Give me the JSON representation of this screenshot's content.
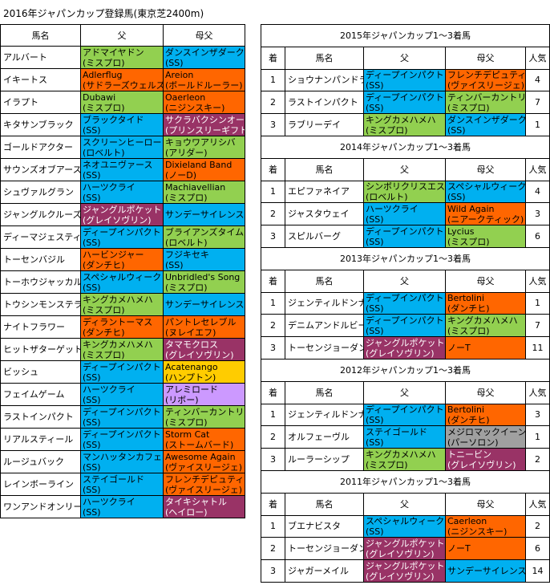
{
  "title": "2016年ジャパンカップ登録馬(東京芝2400m)",
  "entries": {
    "headers": [
      "馬名",
      "父",
      "母父"
    ],
    "rows": [
      {
        "horse": "アルバート",
        "sire": {
          "name": "アドマイヤドン",
          "line": "(ミスプロ)",
          "color": "#92d050"
        },
        "damsire": {
          "name": "ダンスインザダーク",
          "line": "(SS)",
          "color": "#00b0f0"
        }
      },
      {
        "horse": "イキートス",
        "sire": {
          "name": "Adlerflug",
          "line": "(サドラーズウェルズ)",
          "color": "#ff6600"
        },
        "damsire": {
          "name": "Areion",
          "line": "(ボールドルーラー)",
          "color": "#ff6600"
        }
      },
      {
        "horse": "イラプト",
        "sire": {
          "name": "Dubawi",
          "line": "(ミスプロ)",
          "color": "#92d050"
        },
        "damsire": {
          "name": "Oaerleon",
          "line": "(ニジンスキー)",
          "color": "#ff6600"
        }
      },
      {
        "horse": "キタサンブラック",
        "sire": {
          "name": "ブラックタイド",
          "line": "(SS)",
          "color": "#00b0f0"
        },
        "damsire": {
          "name": "サクラバクシンオー",
          "line": "(プリンスリーギフト)",
          "color": "#993366"
        }
      },
      {
        "horse": "ゴールドアクター",
        "sire": {
          "name": "スクリーンヒーロー",
          "line": "(ロベルト)",
          "color": "#00b0f0"
        },
        "damsire": {
          "name": "キョウワアリシバ",
          "line": "(アリダー)",
          "color": "#92d050"
        }
      },
      {
        "horse": "サウンズオブアース",
        "sire": {
          "name": "ネオユニヴァース",
          "line": "(SS)",
          "color": "#00b0f0"
        },
        "damsire": {
          "name": "Dixieland Band",
          "line": "(ノーD)",
          "color": "#ff6600"
        }
      },
      {
        "horse": "シュヴァルグラン",
        "sire": {
          "name": "ハーツクライ",
          "line": "(SS)",
          "color": "#00b0f0"
        },
        "damsire": {
          "name": "Machiavellian",
          "line": "(ミスプロ)",
          "color": "#92d050"
        }
      },
      {
        "horse": "ジャングルクルーズ",
        "sire": {
          "name": "ジャングルポケット",
          "line": "(グレイソヴリン)",
          "color": "#993366"
        },
        "damsire": {
          "name": "サンデーサイレンス",
          "color": "#00b0f0"
        }
      },
      {
        "horse": "ディーマジェスティ",
        "sire": {
          "name": "ディープインパクト",
          "line": "(SS)",
          "color": "#00b0f0"
        },
        "damsire": {
          "name": "ブライアンズタイム",
          "line": "(ロベルト)",
          "color": "#92d050"
        }
      },
      {
        "horse": "トーセンバジル",
        "sire": {
          "name": "ハービンジャー",
          "line": "(ダンチヒ)",
          "color": "#ff6600"
        },
        "damsire": {
          "name": "フジキセキ",
          "line": "(SS)",
          "color": "#00b0f0"
        }
      },
      {
        "horse": "トーホウジャッカル",
        "sire": {
          "name": "スペシャルウィーク",
          "line": "(SS)",
          "color": "#00b0f0"
        },
        "damsire": {
          "name": "Unbridled's Song",
          "line": "(ミスプロ)",
          "color": "#92d050"
        }
      },
      {
        "horse": "トウシンモンステラ",
        "sire": {
          "name": "キングカメハメハ",
          "line": "(ミスプロ)",
          "color": "#92d050"
        },
        "damsire": {
          "name": "サンデーサイレンス",
          "color": "#00b0f0"
        }
      },
      {
        "horse": "ナイトフラワー",
        "sire": {
          "name": "ディラントーマス",
          "line": "(ダンチヒ)",
          "color": "#ff6600"
        },
        "damsire": {
          "name": "パントレセレブル",
          "line": "(ヌレイエフ)",
          "color": "#ff6600"
        }
      },
      {
        "horse": "ヒットザターゲット",
        "sire": {
          "name": "キングカメハメハ",
          "line": "(ミスプロ)",
          "color": "#92d050"
        },
        "damsire": {
          "name": "タマモクロス",
          "line": "(グレイソヴリン)",
          "color": "#993366"
        }
      },
      {
        "horse": "ビッシュ",
        "sire": {
          "name": "ディープインパクト",
          "line": "(SS)",
          "color": "#00b0f0"
        },
        "damsire": {
          "name": "Acatenango",
          "line": "(ハンプトン)",
          "color": "#ffcc00"
        }
      },
      {
        "horse": "フェイムゲーム",
        "sire": {
          "name": "ハーツクライ",
          "line": "(SS)",
          "color": "#00b0f0"
        },
        "damsire": {
          "name": "アレミロード",
          "line": "(リボー)",
          "color": "#cc99ff"
        }
      },
      {
        "horse": "ラストインパクト",
        "sire": {
          "name": "ディープインパクト",
          "line": "(SS)",
          "color": "#00b0f0"
        },
        "damsire": {
          "name": "ティンバーカントリ",
          "line": "(ミスプロ)",
          "color": "#92d050"
        }
      },
      {
        "horse": "リアルスティール",
        "sire": {
          "name": "ディープインパクト",
          "line": "(SS)",
          "color": "#00b0f0"
        },
        "damsire": {
          "name": "Storm Cat",
          "line": "(ストームバード)",
          "color": "#ff6600"
        }
      },
      {
        "horse": "ルージュバック",
        "sire": {
          "name": "マンハッタンカフェ",
          "line": "(SS)",
          "color": "#00b0f0"
        },
        "damsire": {
          "name": "Awesome Again",
          "line": "(ヴァイスリージェ)",
          "color": "#ff6600"
        }
      },
      {
        "horse": "レインボーライン",
        "sire": {
          "name": "ステイゴールド",
          "line": "(SS)",
          "color": "#00b0f0"
        },
        "damsire": {
          "name": "フレンチデピュティ",
          "line": "(ヴァイスリージェ)",
          "color": "#ff6600"
        }
      },
      {
        "horse": "ワンアンドオンリー",
        "sire": {
          "name": "ハーツクライ",
          "line": "(SS)",
          "color": "#00b0f0"
        },
        "damsire": {
          "name": "タイキシャトル",
          "line": "(ヘイロー)",
          "color": "#993366"
        }
      }
    ]
  },
  "results": [
    {
      "title": "2015年ジャパンカップ1～3着馬",
      "headers": [
        "着",
        "馬名",
        "父",
        "母父",
        "人気"
      ],
      "rows": [
        {
          "rank": 1,
          "horse": "ショウナンパンドラ",
          "sire": {
            "name": "ディープインパクト",
            "line": "(SS)",
            "color": "#00b0f0"
          },
          "damsire": {
            "name": "フレンチデピュティ",
            "line": "(ヴァイスリージェ)",
            "color": "#ff6600"
          },
          "popularity": 4
        },
        {
          "rank": 2,
          "horse": "ラストインパクト",
          "sire": {
            "name": "ディープインパクト",
            "line": "(SS)",
            "color": "#00b0f0"
          },
          "damsire": {
            "name": "ティンバーカントリ",
            "line": "(ミスプロ)",
            "color": "#92d050"
          },
          "popularity": 7
        },
        {
          "rank": 3,
          "horse": "ラブリーデイ",
          "sire": {
            "name": "キングカメハメハ",
            "line": "(ミスプロ)",
            "color": "#92d050"
          },
          "damsire": {
            "name": "ダンスインザダーク",
            "line": "(SS)",
            "color": "#00b0f0"
          },
          "popularity": 1
        }
      ]
    },
    {
      "title": "2014年ジャパンカップ1～3着馬",
      "headers": [
        "着",
        "馬名",
        "父",
        "母父",
        "人気"
      ],
      "rows": [
        {
          "rank": 1,
          "horse": "エピファネイア",
          "sire": {
            "name": "シンボリクリスエス",
            "line": "(ロベルト)",
            "color": "#92d050"
          },
          "damsire": {
            "name": "スペシャルウィーク",
            "line": "(SS)",
            "color": "#00b0f0"
          },
          "popularity": 4
        },
        {
          "rank": 2,
          "horse": "ジャスタウェイ",
          "sire": {
            "name": "ハーツクライ",
            "line": "(SS)",
            "color": "#00b0f0"
          },
          "damsire": {
            "name": "Wild Again",
            "line": "(ニアークティック)",
            "color": "#ff6600"
          },
          "popularity": 3
        },
        {
          "rank": 3,
          "horse": "スピルバーグ",
          "sire": {
            "name": "ディープインパクト",
            "line": "(SS)",
            "color": "#00b0f0"
          },
          "damsire": {
            "name": "Lycius",
            "line": "(ミスプロ)",
            "color": "#92d050"
          },
          "popularity": 6
        }
      ]
    },
    {
      "title": "2013年ジャパンカップ1～3着馬",
      "headers": [
        "着",
        "馬名",
        "父",
        "母父",
        "人気"
      ],
      "rows": [
        {
          "rank": 1,
          "horse": "ジェンティルドンナ",
          "sire": {
            "name": "ディープインパクト",
            "line": "(SS)",
            "color": "#00b0f0"
          },
          "damsire": {
            "name": "Bertolini",
            "line": "(ダンチヒ)",
            "color": "#ff6600"
          },
          "popularity": 1
        },
        {
          "rank": 2,
          "horse": "デニムアンドルビー",
          "sire": {
            "name": "ディープインパクト",
            "line": "(SS)",
            "color": "#00b0f0"
          },
          "damsire": {
            "name": "キングカメハメハ",
            "line": "(ミスプロ)",
            "color": "#92d050"
          },
          "popularity": 7
        },
        {
          "rank": 3,
          "horse": "トーセンジョーダン",
          "sire": {
            "name": "ジャングルポケット",
            "line": "(グレイソヴリン)",
            "color": "#993366"
          },
          "damsire": {
            "name": "ノーT",
            "color": "#ff6600"
          },
          "popularity": 11
        }
      ]
    },
    {
      "title": "2012年ジャパンカップ1～3着馬",
      "headers": [
        "着",
        "馬名",
        "父",
        "母父",
        "人気"
      ],
      "rows": [
        {
          "rank": 1,
          "horse": "ジェンティルドンナ",
          "sire": {
            "name": "ディープインパクト",
            "line": "(SS)",
            "color": "#00b0f0"
          },
          "damsire": {
            "name": "Bertolini",
            "line": "(ダンチヒ)",
            "color": "#ff6600"
          },
          "popularity": 3
        },
        {
          "rank": 2,
          "horse": "オルフェーヴル",
          "sire": {
            "name": "ステイゴールド",
            "line": "(SS)",
            "color": "#00b0f0"
          },
          "damsire": {
            "name": "メジロマックイーン",
            "line": "(パーソロン)",
            "color": "#a0a0a0"
          },
          "popularity": 1
        },
        {
          "rank": 3,
          "horse": "ルーラーシップ",
          "sire": {
            "name": "キングカメハメハ",
            "line": "(ミスプロ)",
            "color": "#92d050"
          },
          "damsire": {
            "name": "トニービン",
            "line": "(グレイソヴリン)",
            "color": "#993366"
          },
          "popularity": 2
        }
      ]
    },
    {
      "title": "2011年ジャパンカップ1～3着馬",
      "headers": [
        "着",
        "馬名",
        "父",
        "母父",
        "人気"
      ],
      "rows": [
        {
          "rank": 1,
          "horse": "ブエナビスタ",
          "sire": {
            "name": "スペシャルウィーク",
            "line": "(SS)",
            "color": "#00b0f0"
          },
          "damsire": {
            "name": "Caerleon",
            "line": "(ニジンスキー)",
            "color": "#ff6600"
          },
          "popularity": 2
        },
        {
          "rank": 2,
          "horse": "トーセンジョーダン",
          "sire": {
            "name": "ジャングルポケット",
            "line": "(グレイソヴリン)",
            "color": "#993366"
          },
          "damsire": {
            "name": "ノーT",
            "color": "#ff6600"
          },
          "popularity": 6
        },
        {
          "rank": 3,
          "horse": "ジャガーメイル",
          "sire": {
            "name": "ジャングルポケット",
            "line": "(グレイソヴリン)",
            "color": "#993366"
          },
          "damsire": {
            "name": "サンデーサイレンス",
            "color": "#00b0f0"
          },
          "popularity": 14
        }
      ]
    }
  ]
}
